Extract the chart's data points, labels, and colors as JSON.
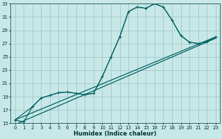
{
  "xlabel": "Humidex (Indice chaleur)",
  "ylabel": "",
  "background_color": "#c8e8e8",
  "grid_color": "#a0c8c8",
  "line_color": "#006060",
  "xlim": [
    -0.5,
    23.5
  ],
  "ylim": [
    15,
    33
  ],
  "xticks": [
    0,
    1,
    2,
    3,
    4,
    5,
    6,
    7,
    8,
    9,
    10,
    11,
    12,
    13,
    14,
    15,
    16,
    17,
    18,
    19,
    20,
    21,
    22,
    23
  ],
  "yticks": [
    15,
    17,
    19,
    21,
    23,
    25,
    27,
    29,
    31,
    33
  ],
  "series_main": {
    "x": [
      0,
      1,
      2,
      3,
      4,
      5,
      6,
      7,
      8,
      9,
      10,
      11,
      12,
      13,
      14,
      15,
      16,
      17,
      18,
      19,
      20,
      21,
      22,
      23
    ],
    "y": [
      15.5,
      15.2,
      17.5,
      18.8,
      19.2,
      19.6,
      19.7,
      19.5,
      19.3,
      19.5,
      22.0,
      25.0,
      28.0,
      31.8,
      32.5,
      32.3,
      33.0,
      32.5,
      30.5,
      28.2,
      27.2,
      27.0,
      27.3,
      28.0
    ]
  },
  "series_smooth": {
    "x": [
      0,
      2,
      3,
      4,
      5,
      6,
      7,
      8,
      9,
      10,
      11,
      12,
      13,
      14,
      15,
      16,
      17,
      18,
      19,
      20,
      21,
      22,
      23
    ],
    "y": [
      15.5,
      17.5,
      18.8,
      19.2,
      19.6,
      19.7,
      19.5,
      19.3,
      19.5,
      22.0,
      25.0,
      28.0,
      31.8,
      32.5,
      32.3,
      33.0,
      32.5,
      30.5,
      28.2,
      27.2,
      27.0,
      27.3,
      28.0
    ]
  },
  "line1": {
    "x": [
      0,
      23
    ],
    "y": [
      15.5,
      28.0
    ]
  },
  "line2": {
    "x": [
      0,
      23
    ],
    "y": [
      14.8,
      27.8
    ]
  }
}
